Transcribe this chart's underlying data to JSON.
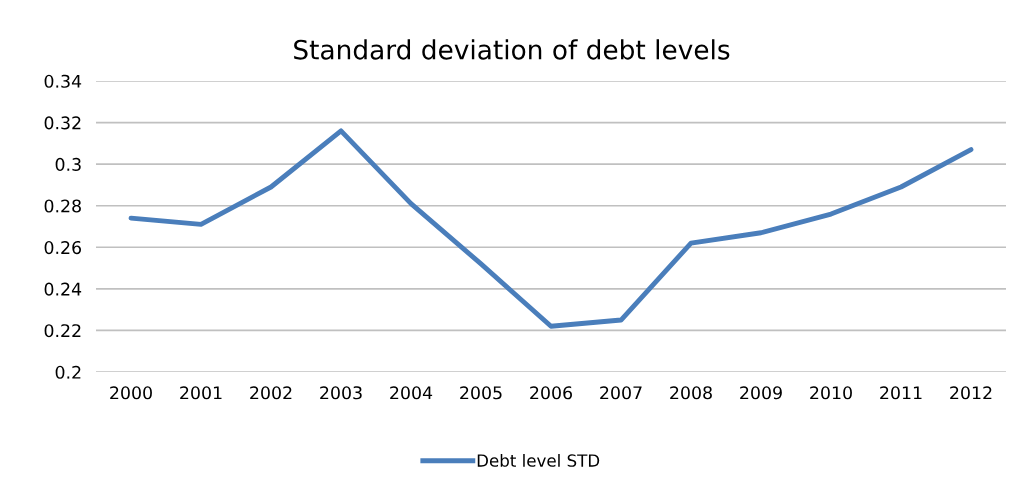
{
  "chart_data": {
    "type": "line",
    "title": "Standard deviation of debt levels",
    "categories": [
      "2000",
      "2001",
      "2002",
      "2003",
      "2004",
      "2005",
      "2006",
      "2007",
      "2008",
      "2009",
      "2010",
      "2011",
      "2012"
    ],
    "series": [
      {
        "name": "Debt level STD",
        "color": "#4a7ebb",
        "values": [
          0.274,
          0.271,
          0.289,
          0.316,
          0.281,
          0.252,
          0.222,
          0.225,
          0.262,
          0.267,
          0.276,
          0.289,
          0.307
        ]
      }
    ],
    "ylim": [
      0.2,
      0.34
    ],
    "yticks": [
      {
        "value": 0.2,
        "label": "0.2"
      },
      {
        "value": 0.22,
        "label": "0.22"
      },
      {
        "value": 0.24,
        "label": "0.24"
      },
      {
        "value": 0.26,
        "label": "0.26"
      },
      {
        "value": 0.28,
        "label": "0.28"
      },
      {
        "value": 0.3,
        "label": "0.3"
      },
      {
        "value": 0.32,
        "label": "0.32"
      },
      {
        "value": 0.34,
        "label": "0.34"
      }
    ],
    "grid": "y",
    "legend": "bottom",
    "marker": "none",
    "line_style": "solid"
  }
}
